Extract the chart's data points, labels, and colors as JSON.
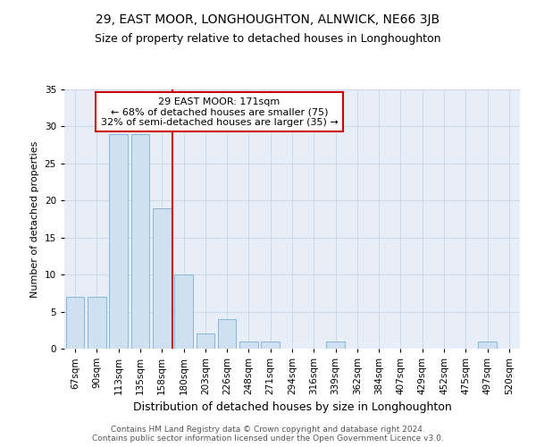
{
  "title": "29, EAST MOOR, LONGHOUGHTON, ALNWICK, NE66 3JB",
  "subtitle": "Size of property relative to detached houses in Longhoughton",
  "xlabel": "Distribution of detached houses by size in Longhoughton",
  "ylabel": "Number of detached properties",
  "categories": [
    "67sqm",
    "90sqm",
    "113sqm",
    "135sqm",
    "158sqm",
    "180sqm",
    "203sqm",
    "226sqm",
    "248sqm",
    "271sqm",
    "294sqm",
    "316sqm",
    "339sqm",
    "362sqm",
    "384sqm",
    "407sqm",
    "429sqm",
    "452sqm",
    "475sqm",
    "497sqm",
    "520sqm"
  ],
  "values": [
    7,
    7,
    29,
    29,
    19,
    10,
    2,
    4,
    1,
    1,
    0,
    0,
    1,
    0,
    0,
    0,
    0,
    0,
    0,
    1,
    0
  ],
  "bar_color": "#cfe0f0",
  "bar_edge_color": "#7aafd4",
  "reference_line_x": 5.0,
  "annotation_text": "29 EAST MOOR: 171sqm\n← 68% of detached houses are smaller (75)\n32% of semi-detached houses are larger (35) →",
  "annotation_box_color": "#ffffff",
  "annotation_box_edge_color": "#cc0000",
  "ylim": [
    0,
    35
  ],
  "yticks": [
    0,
    5,
    10,
    15,
    20,
    25,
    30,
    35
  ],
  "grid_color": "#c8d4e8",
  "background_color": "#e8eef8",
  "footer": "Contains HM Land Registry data © Crown copyright and database right 2024.\nContains public sector information licensed under the Open Government Licence v3.0.",
  "title_fontsize": 10,
  "subtitle_fontsize": 9,
  "xlabel_fontsize": 9,
  "ylabel_fontsize": 8,
  "tick_fontsize": 7.5,
  "annotation_fontsize": 8,
  "footer_fontsize": 6.5
}
